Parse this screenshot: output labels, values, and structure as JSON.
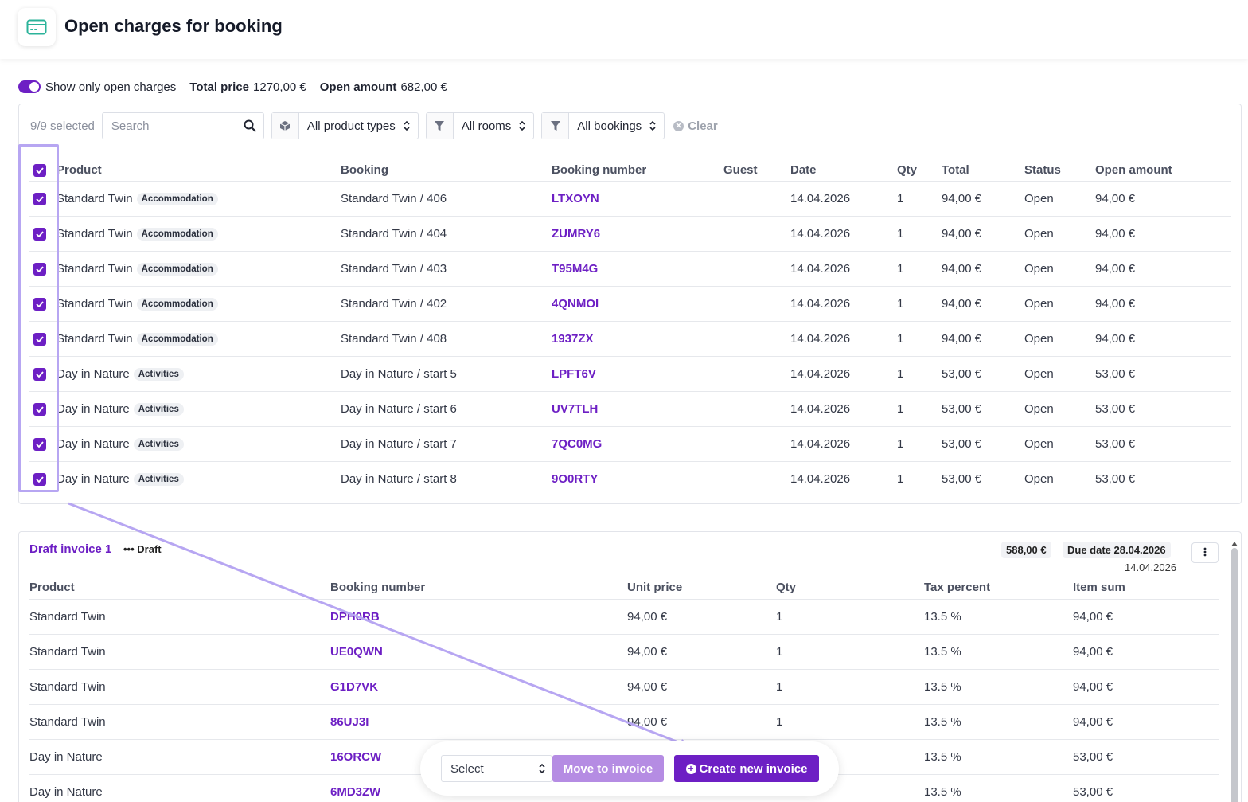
{
  "header": {
    "title": "Open charges for booking",
    "icon": "credit-card-icon"
  },
  "summary": {
    "toggle_label": "Show only open charges",
    "total_label": "Total price",
    "total_value": "1270,00 €",
    "open_label": "Open amount",
    "open_value": "682,00 €"
  },
  "toolbar": {
    "selected": "9/9 selected",
    "search_placeholder": "Search",
    "product_types": "All product types",
    "rooms": "All rooms",
    "bookings": "All bookings",
    "clear": "Clear"
  },
  "charges": {
    "columns": [
      "Product",
      "Booking",
      "Booking number",
      "Guest",
      "Date",
      "Qty",
      "Total",
      "Status",
      "Open amount"
    ],
    "rows": [
      {
        "product": "Standard Twin",
        "tag": "Accommodation",
        "booking": "Standard Twin / 406",
        "number": "LTXOYN",
        "guest": "",
        "date": "14.04.2026",
        "qty": "1",
        "total": "94,00 €",
        "status": "Open",
        "open": "94,00 €"
      },
      {
        "product": "Standard Twin",
        "tag": "Accommodation",
        "booking": "Standard Twin / 404",
        "number": "ZUMRY6",
        "guest": "",
        "date": "14.04.2026",
        "qty": "1",
        "total": "94,00 €",
        "status": "Open",
        "open": "94,00 €"
      },
      {
        "product": "Standard Twin",
        "tag": "Accommodation",
        "booking": "Standard Twin / 403",
        "number": "T95M4G",
        "guest": "",
        "date": "14.04.2026",
        "qty": "1",
        "total": "94,00 €",
        "status": "Open",
        "open": "94,00 €"
      },
      {
        "product": "Standard Twin",
        "tag": "Accommodation",
        "booking": "Standard Twin / 402",
        "number": "4QNMOI",
        "guest": "",
        "date": "14.04.2026",
        "qty": "1",
        "total": "94,00 €",
        "status": "Open",
        "open": "94,00 €"
      },
      {
        "product": "Standard Twin",
        "tag": "Accommodation",
        "booking": "Standard Twin / 408",
        "number": "1937ZX",
        "guest": "",
        "date": "14.04.2026",
        "qty": "1",
        "total": "94,00 €",
        "status": "Open",
        "open": "94,00 €"
      },
      {
        "product": "Day in Nature",
        "tag": "Activities",
        "booking": "Day in Nature / start 5",
        "number": "LPFT6V",
        "guest": "",
        "date": "14.04.2026",
        "qty": "1",
        "total": "53,00 €",
        "status": "Open",
        "open": "53,00 €"
      },
      {
        "product": "Day in Nature",
        "tag": "Activities",
        "booking": "Day in Nature / start 6",
        "number": "UV7TLH",
        "guest": "",
        "date": "14.04.2026",
        "qty": "1",
        "total": "53,00 €",
        "status": "Open",
        "open": "53,00 €"
      },
      {
        "product": "Day in Nature",
        "tag": "Activities",
        "booking": "Day in Nature / start 7",
        "number": "7QC0MG",
        "guest": "",
        "date": "14.04.2026",
        "qty": "1",
        "total": "53,00 €",
        "status": "Open",
        "open": "53,00 €"
      },
      {
        "product": "Day in Nature",
        "tag": "Activities",
        "booking": "Day in Nature / start 8",
        "number": "9O0RTY",
        "guest": "",
        "date": "14.04.2026",
        "qty": "1",
        "total": "53,00 €",
        "status": "Open",
        "open": "53,00 €"
      }
    ]
  },
  "draft": {
    "title": "Draft invoice 1",
    "status": "Draft",
    "amount": "588,00 €",
    "due_date": "Due date 28.04.2026",
    "date": "14.04.2026",
    "columns": [
      "Product",
      "Booking number",
      "Unit price",
      "Qty",
      "Tax percent",
      "Item sum"
    ],
    "rows": [
      {
        "product": "Standard Twin",
        "number": "DPH0RB",
        "unit": "94,00 €",
        "qty": "1",
        "tax": "13.5 %",
        "sum": "94,00 €"
      },
      {
        "product": "Standard Twin",
        "number": "UE0QWN",
        "unit": "94,00 €",
        "qty": "1",
        "tax": "13.5 %",
        "sum": "94,00 €"
      },
      {
        "product": "Standard Twin",
        "number": "G1D7VK",
        "unit": "94,00 €",
        "qty": "1",
        "tax": "13.5 %",
        "sum": "94,00 €"
      },
      {
        "product": "Standard Twin",
        "number": "86UJ3I",
        "unit": "94,00 €",
        "qty": "1",
        "tax": "13.5 %",
        "sum": "94,00 €"
      },
      {
        "product": "Day in Nature",
        "number": "16ORCW",
        "unit": "",
        "qty": "",
        "tax": "13.5 %",
        "sum": "53,00 €"
      },
      {
        "product": "Day in Nature",
        "number": "6MD3ZW",
        "unit": "",
        "qty": "",
        "tax": "13.5 %",
        "sum": "53,00 €"
      }
    ]
  },
  "actions": {
    "select_placeholder": "Select",
    "move": "Move to invoice",
    "create": "Create new invoice"
  },
  "colors": {
    "accent": "#6d1fc4",
    "accent_light": "#b58ce3",
    "highlight": "#b7a6f2"
  }
}
